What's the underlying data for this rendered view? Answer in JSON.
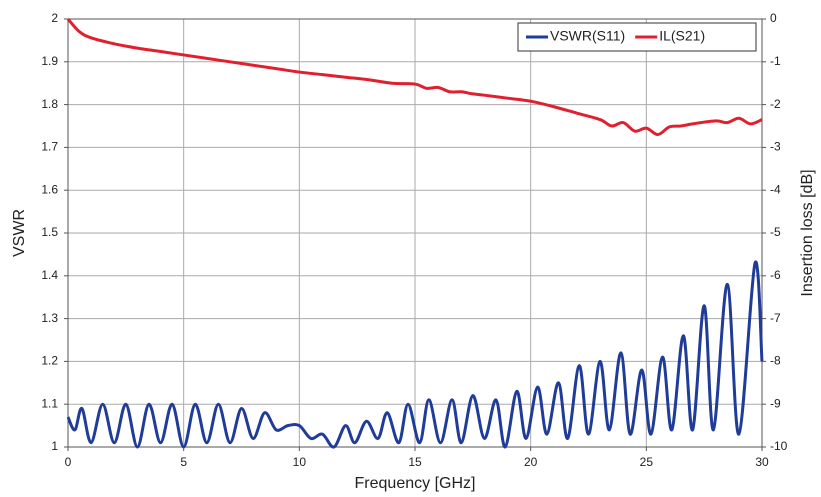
{
  "chart_data": {
    "type": "line",
    "x_label": "Frequency [GHz]",
    "y_label": "VSWR",
    "y2_label": "Insertion loss [dB]",
    "xlim": [
      0,
      30
    ],
    "xticks": [
      0,
      5,
      10,
      15,
      20,
      25,
      30
    ],
    "ylim": [
      1,
      2
    ],
    "yticks": [
      1,
      1.1,
      1.2,
      1.3,
      1.4,
      1.5,
      1.6,
      1.7,
      1.8,
      1.9,
      2
    ],
    "y2lim": [
      -10,
      0
    ],
    "y2ticks": [
      -10,
      -9,
      -8,
      -7,
      -6,
      -5,
      -4,
      -3,
      -2,
      -1,
      0
    ],
    "grid": true,
    "legend": "top-right",
    "series": [
      {
        "name": "VSWR(S11)",
        "color": "#1f3c98",
        "x": [
          0,
          0.3,
          0.6,
          1.0,
          1.5,
          2.0,
          2.5,
          3.0,
          3.5,
          4.0,
          4.5,
          5.0,
          5.5,
          6.0,
          6.5,
          7.0,
          7.5,
          8.0,
          8.5,
          9.0,
          9.5,
          10.0,
          10.5,
          11.0,
          11.5,
          12.0,
          12.4,
          12.9,
          13.4,
          13.8,
          14.3,
          14.7,
          15.2,
          15.6,
          16.1,
          16.6,
          17.0,
          17.5,
          18.0,
          18.5,
          18.9,
          19.4,
          19.8,
          20.3,
          20.7,
          21.2,
          21.6,
          22.1,
          22.5,
          23.0,
          23.4,
          23.9,
          24.3,
          24.8,
          25.2,
          25.7,
          26.1,
          26.6,
          27.0,
          27.5,
          27.9,
          28.5,
          29.0,
          29.7,
          30.0
        ],
        "values": [
          1.07,
          1.04,
          1.09,
          1.01,
          1.1,
          1.01,
          1.1,
          1.0,
          1.1,
          1.01,
          1.1,
          1.0,
          1.1,
          1.01,
          1.1,
          1.01,
          1.09,
          1.02,
          1.08,
          1.04,
          1.05,
          1.05,
          1.02,
          1.03,
          1.0,
          1.05,
          1.01,
          1.06,
          1.02,
          1.08,
          1.01,
          1.1,
          1.01,
          1.11,
          1.01,
          1.11,
          1.01,
          1.12,
          1.02,
          1.11,
          1.0,
          1.13,
          1.02,
          1.14,
          1.03,
          1.15,
          1.02,
          1.19,
          1.03,
          1.2,
          1.04,
          1.22,
          1.03,
          1.18,
          1.03,
          1.21,
          1.04,
          1.26,
          1.04,
          1.33,
          1.04,
          1.38,
          1.03,
          1.43,
          1.2
        ]
      },
      {
        "name": "IL(S21)",
        "color": "#e0202f",
        "axis": "y2",
        "x": [
          0,
          0.5,
          1,
          2,
          3,
          4,
          5,
          6,
          7,
          8,
          9,
          10,
          11,
          12,
          13,
          14,
          15,
          15.5,
          16,
          16.5,
          17,
          17.5,
          18,
          19,
          20,
          21,
          22,
          23,
          23.5,
          24,
          24.5,
          25,
          25.5,
          26,
          26.5,
          27,
          28,
          28.5,
          29,
          29.5,
          30
        ],
        "values": [
          0,
          -0.3,
          -0.44,
          -0.58,
          -0.68,
          -0.76,
          -0.84,
          -0.92,
          -1.0,
          -1.08,
          -1.16,
          -1.24,
          -1.3,
          -1.36,
          -1.42,
          -1.5,
          -1.52,
          -1.62,
          -1.6,
          -1.7,
          -1.7,
          -1.75,
          -1.78,
          -1.85,
          -1.92,
          -2.05,
          -2.2,
          -2.35,
          -2.5,
          -2.42,
          -2.62,
          -2.55,
          -2.7,
          -2.52,
          -2.5,
          -2.45,
          -2.38,
          -2.42,
          -2.32,
          -2.45,
          -2.35
        ]
      }
    ]
  }
}
